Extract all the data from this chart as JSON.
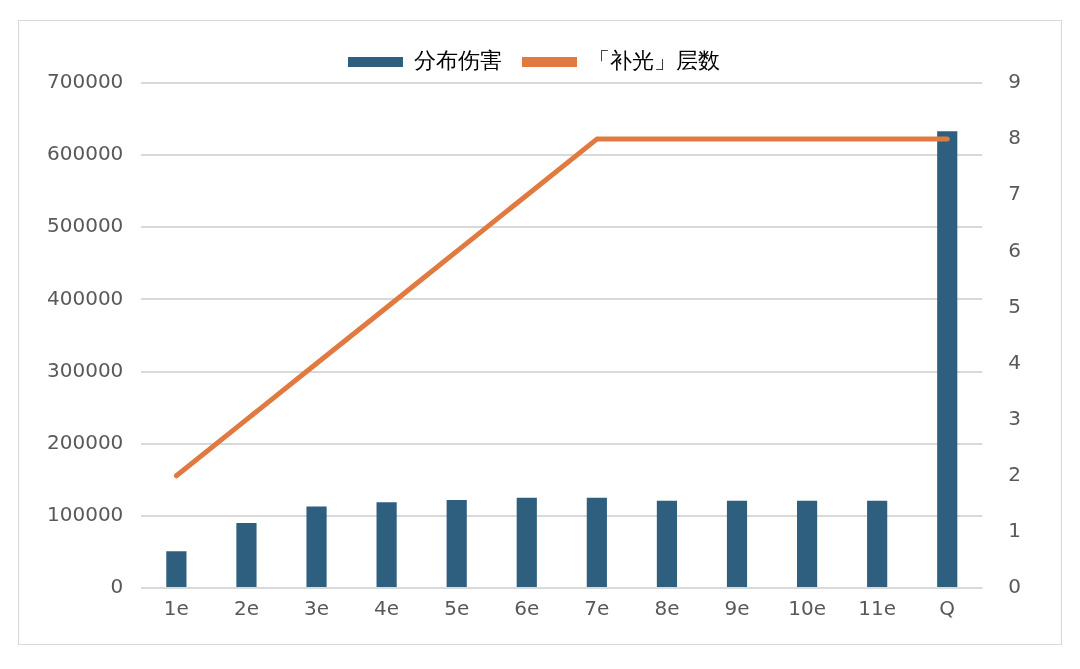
{
  "chart_data": {
    "type": "bar",
    "categories": [
      "1e",
      "2e",
      "3e",
      "4e",
      "5e",
      "6e",
      "7e",
      "8e",
      "9e",
      "10e",
      "11e",
      "Q"
    ],
    "series": [
      {
        "name": "分布伤害",
        "color": "#2e5f7f",
        "values": [
          51000,
          90000,
          113000,
          119000,
          122000,
          125000,
          125000,
          121000,
          121000,
          121000,
          121000,
          633000
        ]
      },
      {
        "name": "「补光」层数",
        "type": "line",
        "axis": "y2",
        "color": "#e07a40",
        "values": [
          2,
          3,
          4,
          5,
          6,
          7,
          8,
          8,
          8,
          8,
          8,
          8
        ]
      }
    ],
    "ylim": [
      0,
      700000
    ],
    "yticks": [
      0,
      100000,
      200000,
      300000,
      400000,
      500000,
      600000,
      700000
    ],
    "y2lim": [
      0,
      9
    ],
    "y2ticks": [
      0,
      1,
      2,
      3,
      4,
      5,
      6,
      7,
      8,
      9
    ],
    "grid": "y",
    "legend": "top",
    "marker": "none"
  }
}
